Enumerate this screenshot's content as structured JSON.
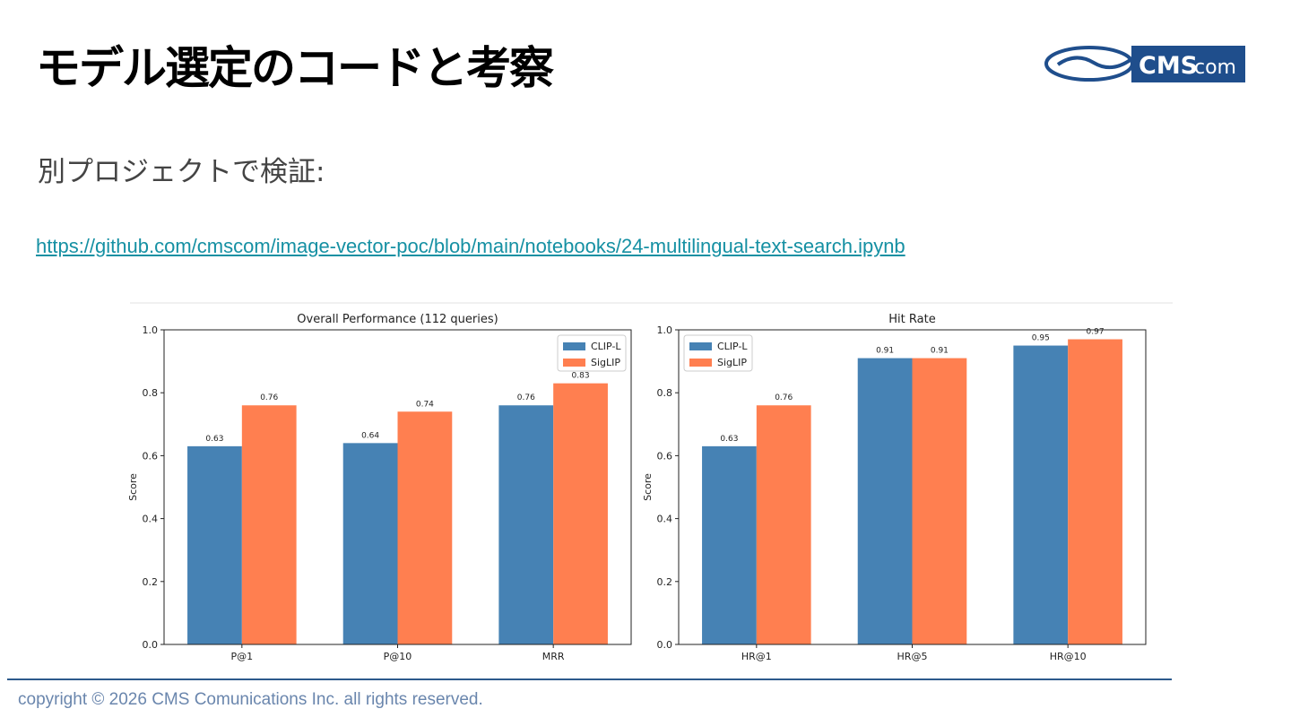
{
  "title": "モデル選定のコードと考察",
  "subtitle": "別プロジェクトで検証:",
  "link": "https://github.com/cmscom/image-vector-poc/blob/main/notebooks/24-multilingual-text-search.ipynb",
  "logo": {
    "main": "CMS",
    "suffix": "com"
  },
  "copyright": "copyright © 2026 CMS Comunications Inc. all rights reserved.",
  "chart_data": [
    {
      "type": "bar",
      "title": "Overall Performance (112 queries)",
      "y_label": "Score",
      "categories": [
        "P@1",
        "P@10",
        "MRR"
      ],
      "series": [
        {
          "name": "CLIP-L",
          "color": "#4682b4",
          "values": [
            0.63,
            0.64,
            0.76
          ]
        },
        {
          "name": "SigLIP",
          "color": "#ff7f50",
          "values": [
            0.76,
            0.74,
            0.83
          ]
        }
      ],
      "ylim": [
        0,
        1
      ],
      "yticks": [
        {
          "value": 0,
          "label": "0.0"
        },
        0.2,
        0.4,
        0.6,
        0.8,
        {
          "value": 1,
          "label": "1.0"
        }
      ],
      "grid": false,
      "legend": "upper right"
    },
    {
      "type": "bar",
      "title": "Hit Rate",
      "y_label": "Score",
      "categories": [
        "HR@1",
        "HR@5",
        "HR@10"
      ],
      "series": [
        {
          "name": "CLIP-L",
          "color": "#4682b4",
          "values": [
            0.63,
            0.91,
            0.95
          ]
        },
        {
          "name": "SigLIP",
          "color": "#ff7f50",
          "values": [
            0.76,
            0.91,
            0.97
          ]
        }
      ],
      "ylim": [
        0,
        1
      ],
      "yticks": [
        {
          "value": 0,
          "label": "0.0"
        },
        0.2,
        0.4,
        0.6,
        0.8,
        {
          "value": 1,
          "label": "1.0"
        }
      ],
      "grid": false,
      "legend": "upper left"
    }
  ]
}
